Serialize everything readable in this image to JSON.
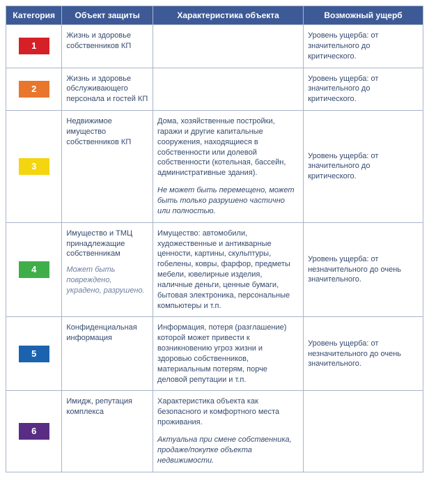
{
  "header": {
    "category": "Категория",
    "object": "Объект защиты",
    "characteristic": "Характеристика объекта",
    "damage": "Возможный ущерб"
  },
  "columns": {
    "widths": [
      "80px",
      "130px",
      "215px",
      "171px"
    ]
  },
  "header_bg": "#3d5a96",
  "border_color": "#a8b4c8",
  "text_color": "#354a6e",
  "note_color": "#6c7fa0",
  "rows": [
    {
      "num": "1",
      "badge_color": "#d62027",
      "object": "Жизнь и здоровье собственников КП",
      "object_note": "",
      "characteristic": "",
      "char_note": "",
      "damage": "Уровень ущерба: от значительного до критического."
    },
    {
      "num": "2",
      "badge_color": "#e8762c",
      "object": "Жизнь и здоровье обслуживающего персонала и гостей КП",
      "object_note": "",
      "characteristic": "",
      "char_note": "",
      "damage": "Уровень ущерба: от значительного до критического."
    },
    {
      "num": "3",
      "badge_color": "#f4d50f",
      "object": "Недвижимое имущество собственников КП",
      "object_note": "",
      "characteristic": "Дома, хозяйственные постройки, гаражи и другие капитальные сооружения, находящиеся в собственности или долевой собственности (котельная, бассейн, административные здания).",
      "char_note": "Не может быть перемещено, может быть только разрушено частично или полностью.",
      "damage": "Уровень ущерба: от значительного до критического."
    },
    {
      "num": "4",
      "badge_color": "#3fae49",
      "object": "Имущество и ТМЦ принадлежащие собственникам",
      "object_note": "Может быть повреждено, украдено, разрушено.",
      "characteristic": "Имущество: автомобили, художественные и антикварные ценности, картины, скульптуры, гобелены, ковры,  фарфор, предметы мебели, ювелирные изделия, наличные деньги, ценные бумаги, бытовая электроника, персональные компьютеры и т.п.",
      "char_note": "",
      "damage": "Уровень ущерба: от незначительного до очень значительного."
    },
    {
      "num": "5",
      "badge_color": "#1c63af",
      "object": "Конфиденциальная информация",
      "object_note": "",
      "characteristic": "Информация, потеря (разглашение) которой может привести к возникновению угроз жизни и здоровью собственников, материальным потерям, порче деловой репутации и т.п.",
      "char_note": "",
      "damage": "Уровень ущерба: от незначительного до очень значительного."
    },
    {
      "num": "6",
      "badge_color": "#5a2d85",
      "object": "Имидж, репутация комплекса",
      "object_note": "",
      "characteristic": "Характеристика объекта как безопасного и комфортного места проживания.",
      "char_note": "Актуальна при смене собственника, продаже/покупке объекта недвижимости.",
      "damage": ""
    }
  ]
}
